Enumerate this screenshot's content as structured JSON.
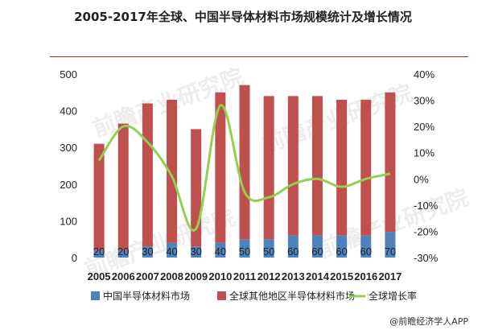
{
  "title": "2005-2017年全球、中国半导体材料市场规模统计及增长情况",
  "source": "@前瞻经济学人APP",
  "watermark": "前瞻产业研究院",
  "chart_data": {
    "type": "bar",
    "categories": [
      "2005",
      "2006",
      "2007",
      "2008",
      "2009",
      "2010",
      "2011",
      "2012",
      "2013",
      "2014",
      "2015",
      "2016",
      "2017"
    ],
    "series": [
      {
        "name": "中国半导体材料市场",
        "kind": "bar",
        "color": "#4f81bd",
        "values": [
          20,
          20,
          30,
          40,
          30,
          40,
          50,
          50,
          60,
          60,
          60,
          60,
          70
        ]
      },
      {
        "name": "全球其他地区半导体材料市场",
        "kind": "bar",
        "color": "#c0504d",
        "values": [
          290,
          345,
          390,
          390,
          320,
          410,
          420,
          390,
          380,
          380,
          370,
          370,
          380
        ]
      },
      {
        "name": "全球增长率",
        "kind": "line",
        "color": "#92d050",
        "axis": "right",
        "values": [
          7,
          20,
          14,
          1,
          -19,
          28,
          -5,
          -7,
          -2,
          0,
          -3,
          0,
          2
        ]
      }
    ],
    "bar_labels": [
      "20",
      "20",
      "30",
      "40",
      "30",
      "40",
      "50",
      "50",
      "60",
      "60",
      "60",
      "60",
      "70"
    ],
    "y_left": {
      "min": 0,
      "max": 500,
      "ticks": [
        "0",
        "100",
        "200",
        "300",
        "400",
        "500"
      ]
    },
    "y_right": {
      "min": -30,
      "max": 40,
      "ticks": [
        "-30%",
        "-20%",
        "-10%",
        "0%",
        "10%",
        "20%",
        "30%",
        "40%"
      ]
    },
    "legend_position": "bottom",
    "grid": false
  }
}
